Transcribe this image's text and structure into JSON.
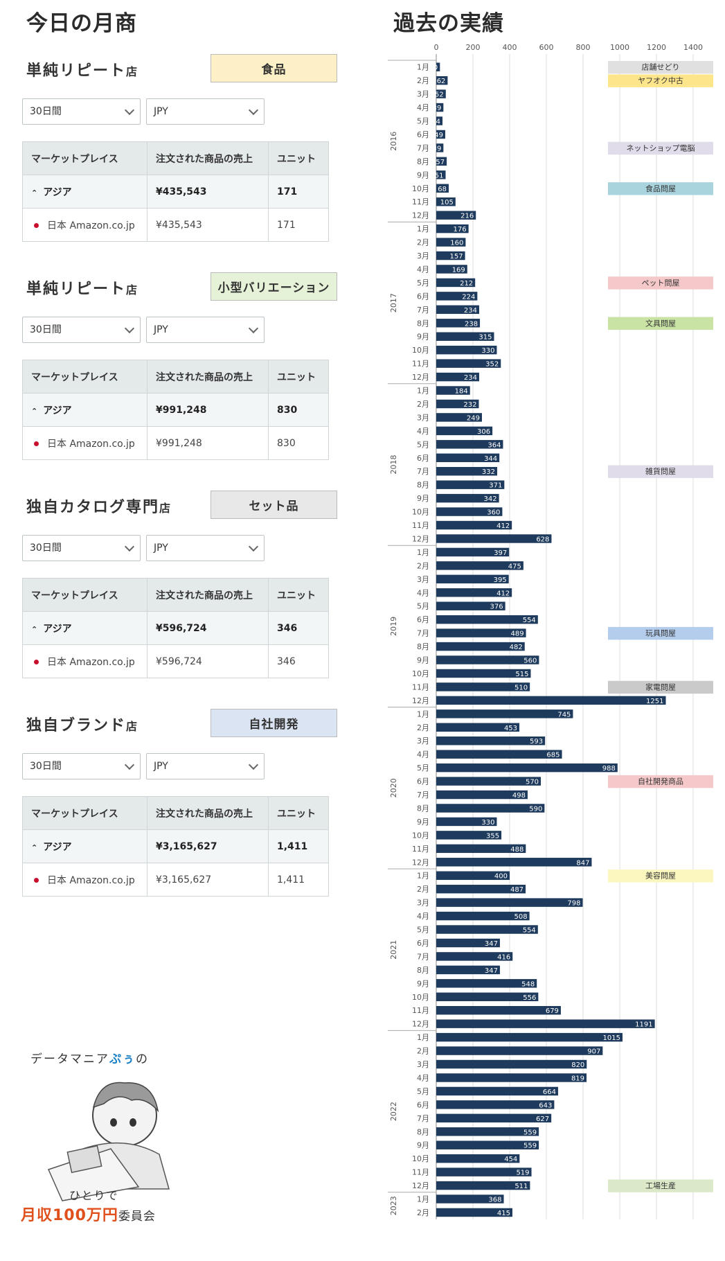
{
  "left_title": "今日の月商",
  "right_title": "過去の実績",
  "column_headers": {
    "marketplace": "マーケットプレイス",
    "sales": "注文された商品の売上",
    "units": "ユニット"
  },
  "stores": [
    {
      "name": "単純リピート",
      "suffix": "店",
      "category": "食品",
      "category_color": "#fdf0c6",
      "period": "30日間",
      "currency": "JPY",
      "region": "アジア",
      "region_sales": "¥435,543",
      "region_units": "171",
      "market": "日本 Amazon.co.jp",
      "market_sales": "¥435,543",
      "market_units": "171"
    },
    {
      "name": "単純リピート",
      "suffix": "店",
      "category": "小型バリエーション",
      "category_color": "#e6f2d8",
      "period": "30日間",
      "currency": "JPY",
      "region": "アジア",
      "region_sales": "¥991,248",
      "region_units": "830",
      "market": "日本 Amazon.co.jp",
      "market_sales": "¥991,248",
      "market_units": "830"
    },
    {
      "name": "独自カタログ専門",
      "suffix": "店",
      "category": "セット品",
      "category_color": "#e8e8e8",
      "period": "30日間",
      "currency": "JPY",
      "region": "アジア",
      "region_sales": "¥596,724",
      "region_units": "346",
      "market": "日本 Amazon.co.jp",
      "market_sales": "¥596,724",
      "market_units": "346"
    },
    {
      "name": "独自ブランド",
      "suffix": "店",
      "category": "自社開発",
      "category_color": "#dbe4f2",
      "period": "30日間",
      "currency": "JPY",
      "region": "アジア",
      "region_sales": "¥3,165,627",
      "region_units": "1,411",
      "market": "日本 Amazon.co.jp",
      "market_sales": "¥3,165,627",
      "market_units": "1,411"
    }
  ],
  "logo": {
    "line1a": "データマニア",
    "line1b": "ぷぅ",
    "line1c": "の",
    "line2": "ひとりで",
    "line3a": "月収100万円",
    "line3b": "委員会"
  },
  "chart_data": {
    "type": "bar",
    "orientation": "horizontal",
    "xlim": [
      0,
      1400
    ],
    "xticks": [
      0,
      200,
      400,
      600,
      800,
      1000,
      1200,
      1400
    ],
    "bar_color": "#1e3a5c",
    "years": [
      {
        "label": "2016",
        "months": [
          "1月",
          "2月",
          "3月",
          "4月",
          "5月",
          "6月",
          "7月",
          "8月",
          "9月",
          "10月",
          "11月",
          "12月"
        ],
        "values": [
          20,
          62,
          52,
          39,
          34,
          49,
          39,
          57,
          51,
          68,
          105,
          216
        ]
      },
      {
        "label": "2017",
        "months": [
          "1月",
          "2月",
          "3月",
          "4月",
          "5月",
          "6月",
          "7月",
          "8月",
          "9月",
          "10月",
          "11月",
          "12月"
        ],
        "values": [
          176,
          160,
          157,
          169,
          212,
          224,
          234,
          238,
          315,
          330,
          352,
          234
        ]
      },
      {
        "label": "2018",
        "months": [
          "1月",
          "2月",
          "3月",
          "4月",
          "5月",
          "6月",
          "7月",
          "8月",
          "9月",
          "10月",
          "11月",
          "12月"
        ],
        "values": [
          184,
          232,
          249,
          306,
          364,
          344,
          332,
          371,
          342,
          360,
          412,
          628
        ]
      },
      {
        "label": "2019",
        "months": [
          "1月",
          "2月",
          "3月",
          "4月",
          "5月",
          "6月",
          "7月",
          "8月",
          "9月",
          "10月",
          "11月",
          "12月"
        ],
        "values": [
          397,
          475,
          395,
          412,
          376,
          554,
          489,
          482,
          560,
          515,
          510,
          1251
        ]
      },
      {
        "label": "2020",
        "months": [
          "1月",
          "2月",
          "3月",
          "4月",
          "5月",
          "6月",
          "7月",
          "8月",
          "9月",
          "10月",
          "11月",
          "12月"
        ],
        "values": [
          745,
          453,
          593,
          685,
          988,
          570,
          498,
          590,
          330,
          355,
          488,
          847
        ]
      },
      {
        "label": "2021",
        "months": [
          "1月",
          "2月",
          "3月",
          "4月",
          "5月",
          "6月",
          "7月",
          "8月",
          "9月",
          "10月",
          "11月",
          "12月"
        ],
        "values": [
          400,
          487,
          798,
          508,
          554,
          347,
          416,
          347,
          548,
          556,
          679,
          1191
        ]
      },
      {
        "label": "2022",
        "months": [
          "1月",
          "2月",
          "3月",
          "4月",
          "5月",
          "6月",
          "7月",
          "8月",
          "9月",
          "10月",
          "11月",
          "12月"
        ],
        "values": [
          1015,
          907,
          820,
          819,
          664,
          643,
          627,
          559,
          559,
          454,
          519,
          511
        ]
      },
      {
        "label": "2023",
        "months": [
          "1月",
          "2月"
        ],
        "values": [
          368,
          415
        ]
      }
    ],
    "annotations": [
      {
        "year": "2016",
        "month": "1月",
        "text": "店舗せどり",
        "color": "#e0e0e0"
      },
      {
        "year": "2016",
        "month": "2月",
        "text": "ヤフオク中古",
        "color": "#fde58c"
      },
      {
        "year": "2016",
        "month": "7月",
        "text": "ネットショップ電脳",
        "color": "#e1dcea"
      },
      {
        "year": "2016",
        "month": "10月",
        "text": "食品問屋",
        "color": "#a9d4de"
      },
      {
        "year": "2017",
        "month": "5月",
        "text": "ペット問屋",
        "color": "#f5c9c9"
      },
      {
        "year": "2017",
        "month": "8月",
        "text": "文具問屋",
        "color": "#c9e3a5"
      },
      {
        "year": "2018",
        "month": "7月",
        "text": "雑貨問屋",
        "color": "#e1dcea"
      },
      {
        "year": "2019",
        "month": "7月",
        "text": "玩具問屋",
        "color": "#b4cdec"
      },
      {
        "year": "2019",
        "month": "11月",
        "text": "家電問屋",
        "color": "#cacaca"
      },
      {
        "year": "2020",
        "month": "6月",
        "text": "自社開発商品",
        "color": "#f5c9c9"
      },
      {
        "year": "2021",
        "month": "1月",
        "text": "美容問屋",
        "color": "#fbf7bf"
      },
      {
        "year": "2022",
        "month": "12月",
        "text": "工場生産",
        "color": "#dbe9c9"
      }
    ]
  }
}
